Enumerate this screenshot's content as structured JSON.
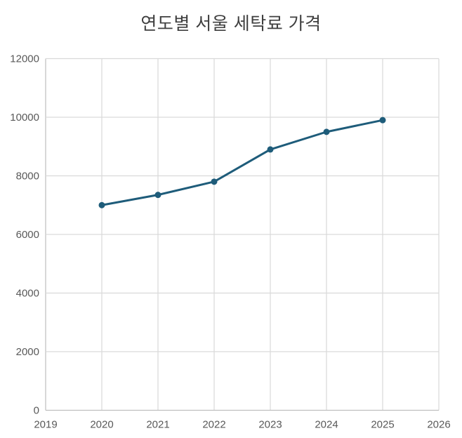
{
  "chart_data": {
    "type": "line",
    "title": "연도별 서울 세탁료 가격",
    "x": [
      2020,
      2021,
      2022,
      2023,
      2024,
      2025
    ],
    "values": [
      7000,
      7350,
      7800,
      8900,
      9500,
      9900
    ],
    "x_ticks": [
      "2019",
      "2020",
      "2021",
      "2022",
      "2023",
      "2024",
      "2025",
      "2026"
    ],
    "x_tick_values": [
      2019,
      2020,
      2021,
      2022,
      2023,
      2024,
      2025,
      2026
    ],
    "y_ticks": [
      "0",
      "2000",
      "4000",
      "6000",
      "8000",
      "10000",
      "12000"
    ],
    "y_tick_values": [
      0,
      2000,
      4000,
      6000,
      8000,
      10000,
      12000
    ],
    "xlim": [
      2019,
      2026
    ],
    "ylim": [
      0,
      12000
    ],
    "grid": true,
    "legend": false,
    "marker": "circle",
    "colors": {
      "series": "#1e5c7a",
      "gridline": "#d9d9d9",
      "axis_line": "#bfbfbf",
      "tick_text": "#595959",
      "title_text": "#3f3f3f",
      "background": "#ffffff"
    }
  }
}
